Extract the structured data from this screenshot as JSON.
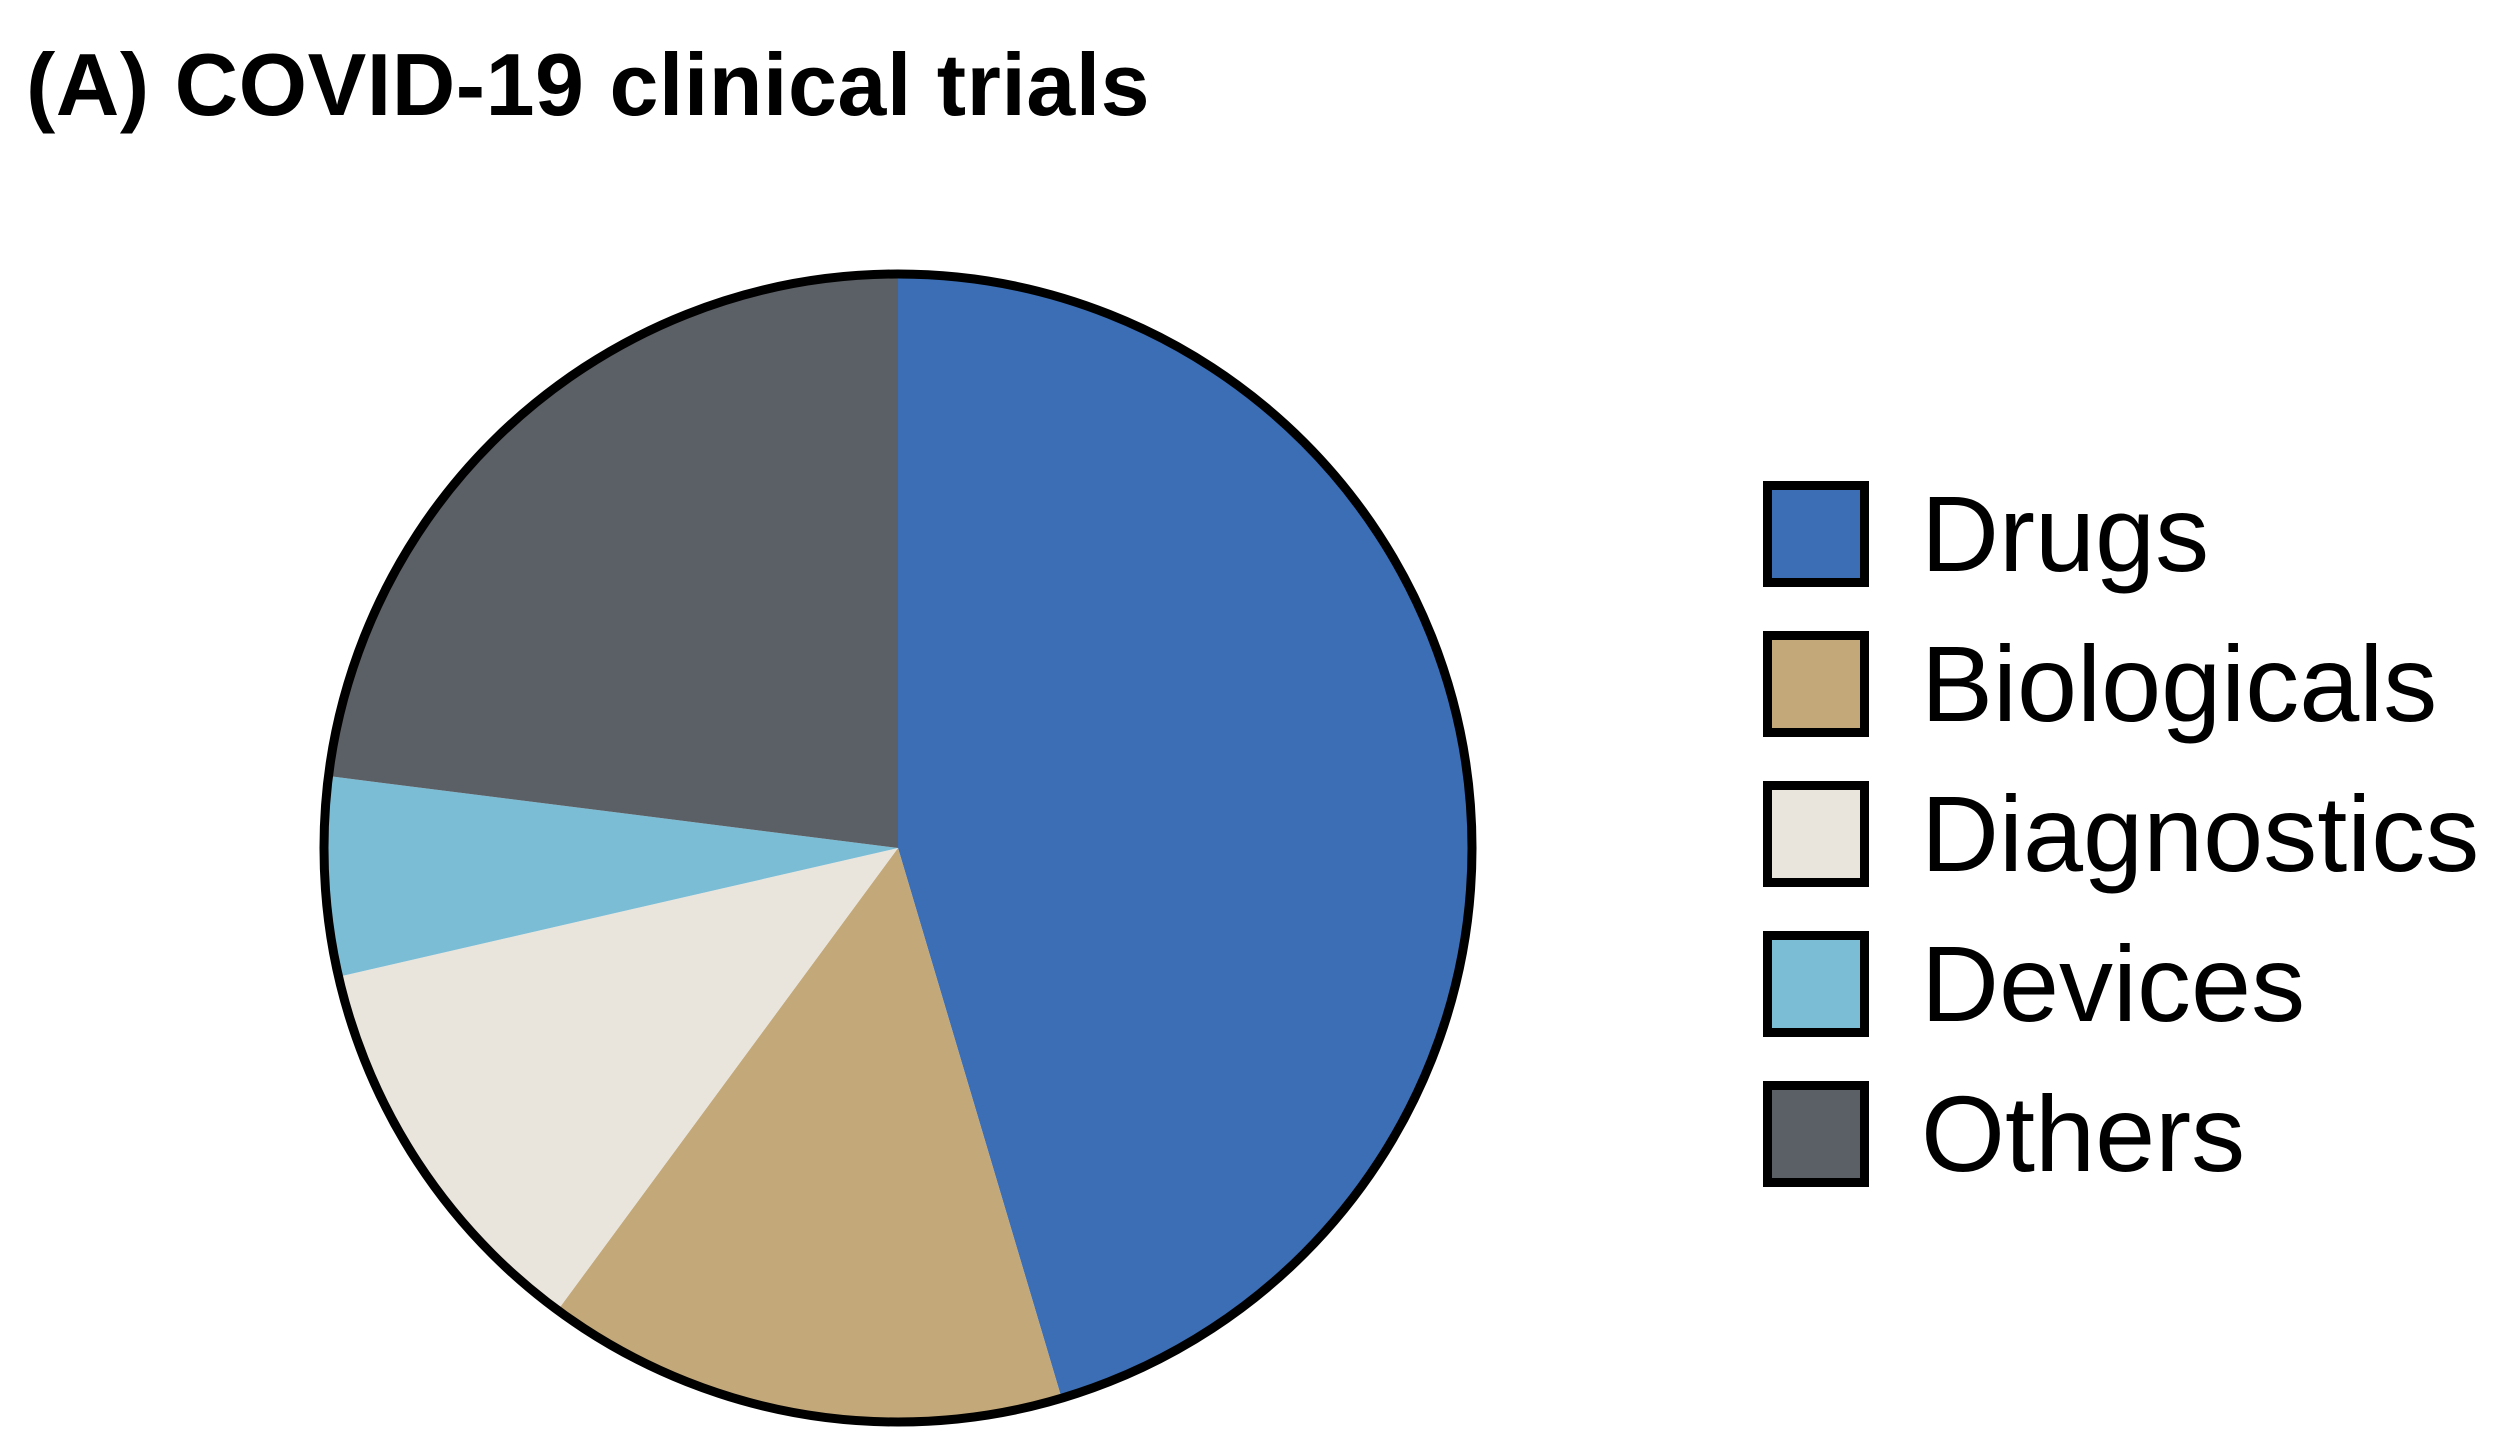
{
  "figure": {
    "background": "#FFFFFF",
    "outline_color": "#000000",
    "outline_width": 9
  },
  "chart_data": {
    "type": "pie",
    "title": "(A) COVID-19 clinical trials",
    "start_angle_deg": 0,
    "direction": "clockwise",
    "legend_position": "right",
    "grid": false,
    "slices": [
      {
        "label": "Drugs",
        "percent": 45.4,
        "color": "#3B6EB5"
      },
      {
        "label": "Biologicals",
        "percent": 14.7,
        "color": "#C3A87A"
      },
      {
        "label": "Diagnostics",
        "percent": 11.3,
        "color": "#EAE5DC"
      },
      {
        "label": "Devices",
        "percent": 5.6,
        "color": "#7CBDD6"
      },
      {
        "label": "Others",
        "percent": 23.0,
        "color": "#5B6066"
      }
    ]
  }
}
